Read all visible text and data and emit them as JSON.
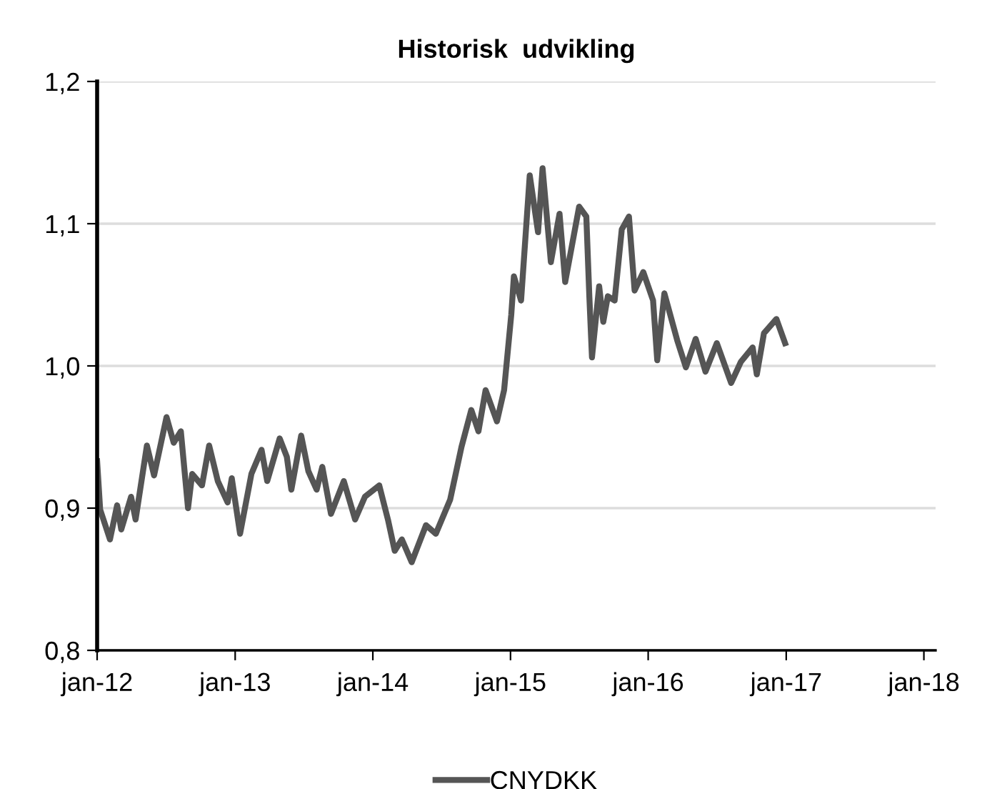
{
  "chart_data": {
    "type": "line",
    "title": "Historisk  udvikling",
    "x": [
      "2012-01-01",
      "2012-01-09",
      "2012-02-04",
      "2012-02-23",
      "2012-03-05",
      "2012-03-31",
      "2012-04-12",
      "2012-05-12",
      "2012-05-31",
      "2012-07-03",
      "2012-07-22",
      "2012-08-10",
      "2012-08-29",
      "2012-09-09",
      "2012-10-05",
      "2012-10-24",
      "2012-11-16",
      "2012-12-12",
      "2012-12-23",
      "2013-01-14",
      "2013-02-13",
      "2013-03-12",
      "2013-03-27",
      "2013-04-29",
      "2013-05-18",
      "2013-05-30",
      "2013-06-25",
      "2013-07-14",
      "2013-08-05",
      "2013-08-20",
      "2013-09-12",
      "2013-10-16",
      "2013-11-15",
      "2013-12-11",
      "2014-01-18",
      "2014-02-10",
      "2014-02-28",
      "2014-03-19",
      "2014-04-14",
      "2014-05-22",
      "2014-06-17",
      "2014-07-25",
      "2014-08-24",
      "2014-09-19",
      "2014-10-08",
      "2014-10-27",
      "2014-11-26",
      "2014-12-15",
      "2015-01-03",
      "2015-01-10",
      "2015-01-29",
      "2015-02-21",
      "2015-03-15",
      "2015-03-27",
      "2015-04-18",
      "2015-05-11",
      "2015-05-26",
      "2015-07-02",
      "2015-07-21",
      "2015-07-29",
      "2015-08-05",
      "2015-08-24",
      "2015-09-04",
      "2015-09-16",
      "2015-10-04",
      "2015-10-23",
      "2015-11-11",
      "2015-11-26",
      "2015-12-19",
      "2016-01-14",
      "2016-01-25",
      "2016-02-13",
      "2016-03-18",
      "2016-04-10",
      "2016-05-06",
      "2016-06-01",
      "2016-07-01",
      "2016-08-08",
      "2016-09-03",
      "2016-10-04",
      "2016-10-15",
      "2016-11-03",
      "2016-12-06",
      "2016-12-29"
    ],
    "series": [
      {
        "name": "CNYDKK",
        "color": "#555555",
        "values": [
          0.933,
          0.899,
          0.878,
          0.902,
          0.885,
          0.908,
          0.892,
          0.944,
          0.923,
          0.964,
          0.946,
          0.954,
          0.9,
          0.924,
          0.916,
          0.944,
          0.919,
          0.904,
          0.921,
          0.882,
          0.924,
          0.941,
          0.919,
          0.949,
          0.936,
          0.913,
          0.951,
          0.926,
          0.913,
          0.929,
          0.896,
          0.919,
          0.892,
          0.908,
          0.916,
          0.892,
          0.87,
          0.878,
          0.862,
          0.888,
          0.882,
          0.906,
          0.943,
          0.969,
          0.954,
          0.983,
          0.961,
          0.983,
          1.036,
          1.063,
          1.046,
          1.134,
          1.094,
          1.139,
          1.073,
          1.107,
          1.059,
          1.112,
          1.105,
          1.049,
          1.006,
          1.056,
          1.031,
          1.049,
          1.046,
          1.096,
          1.105,
          1.053,
          1.066,
          1.046,
          1.004,
          1.051,
          1.018,
          0.999,
          1.019,
          0.996,
          1.016,
          0.988,
          1.003,
          1.013,
          0.994,
          1.023,
          1.033,
          1.016
        ]
      }
    ],
    "xlim": [
      "2012-01-01",
      "2018-02-01"
    ],
    "xticks": [
      {
        "value": "2012-01-01",
        "label": "jan-12"
      },
      {
        "value": "2013-01-01",
        "label": "jan-13"
      },
      {
        "value": "2014-01-01",
        "label": "jan-14"
      },
      {
        "value": "2015-01-01",
        "label": "jan-15"
      },
      {
        "value": "2016-01-01",
        "label": "jan-16"
      },
      {
        "value": "2017-01-01",
        "label": "jan-17"
      },
      {
        "value": "2018-01-01",
        "label": "jan-18"
      }
    ],
    "ylim": [
      0.8,
      1.2
    ],
    "yticks": [
      {
        "value": 0.8,
        "label": "0,8"
      },
      {
        "value": 0.9,
        "label": "0,9"
      },
      {
        "value": 1.0,
        "label": "1,0"
      },
      {
        "value": 1.1,
        "label": "1,1"
      },
      {
        "value": 1.2,
        "label": "1,2"
      }
    ],
    "grid": "y",
    "legend": "bottom",
    "marker": "none",
    "line_style": "solid"
  }
}
